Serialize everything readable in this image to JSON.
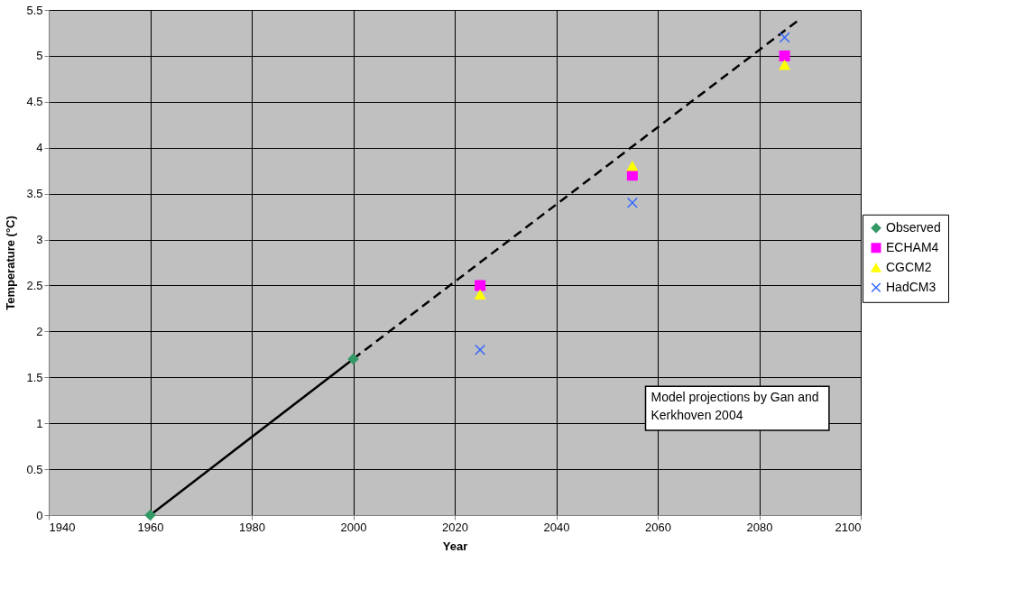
{
  "chart_data": {
    "type": "scatter",
    "xlabel": "Year",
    "ylabel": "Temperature (°C)",
    "xlim": [
      1940,
      2100
    ],
    "xticks": [
      1940,
      1960,
      1980,
      2000,
      2020,
      2040,
      2060,
      2080,
      2100
    ],
    "ylim": [
      0,
      5.5
    ],
    "yticks": [
      0,
      0.5,
      1,
      1.5,
      2,
      2.5,
      3,
      3.5,
      4,
      4.5,
      5,
      5.5
    ],
    "grid": true,
    "legend": "right",
    "annotations": [
      "Model projections by Gan and Kerkhoven 2004"
    ],
    "series": [
      {
        "type": "line",
        "color": "#000000",
        "line_style": "solid",
        "marker": "none",
        "x": [
          1960,
          2000
        ],
        "values": [
          0,
          1.7
        ]
      },
      {
        "type": "line",
        "color": "#000000",
        "line_style": "dashed",
        "marker": "none",
        "x": [
          2000,
          2088
        ],
        "values": [
          1.7,
          5.4
        ]
      },
      {
        "name": "Observed",
        "color": "#339966",
        "marker": "diamond",
        "x": [
          1960,
          2000
        ],
        "values": [
          0,
          1.7
        ]
      },
      {
        "name": "ECHAM4",
        "color": "#ff00ff",
        "marker": "square",
        "x": [
          2025,
          2055,
          2085
        ],
        "values": [
          2.5,
          3.7,
          5.0
        ]
      },
      {
        "name": "CGCM2",
        "color": "#ffff00",
        "marker": "triangle",
        "x": [
          2025,
          2055,
          2085
        ],
        "values": [
          2.4,
          3.8,
          4.9
        ]
      },
      {
        "name": "HadCM3",
        "color": "#3366ff",
        "marker": "cross",
        "x": [
          2025,
          2055,
          2085
        ],
        "values": [
          1.8,
          3.4,
          5.2
        ]
      }
    ]
  }
}
